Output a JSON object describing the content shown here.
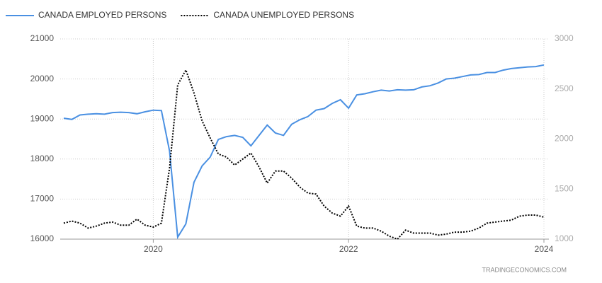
{
  "chart_data": {
    "type": "line",
    "categories": [
      null,
      null,
      null,
      null,
      null,
      null,
      null,
      null,
      null,
      null,
      null,
      "2020",
      null,
      null,
      null,
      null,
      null,
      null,
      null,
      null,
      null,
      null,
      null,
      null,
      null,
      null,
      null,
      null,
      null,
      null,
      null,
      null,
      null,
      null,
      null,
      "2022",
      null,
      null,
      null,
      null,
      null,
      null,
      null,
      null,
      null,
      null,
      null,
      null,
      null,
      null,
      null,
      null,
      null,
      null,
      null,
      null,
      null,
      null,
      null,
      "2024"
    ],
    "series": [
      {
        "name": "CANADA EMPLOYED PERSONS",
        "color": "#4a90e2",
        "axis": "y",
        "dash": false,
        "values": [
          19020,
          18990,
          19100,
          19120,
          19130,
          19120,
          19160,
          19170,
          19160,
          19130,
          19180,
          19220,
          19210,
          18200,
          16050,
          16380,
          17420,
          17830,
          18050,
          18490,
          18560,
          18590,
          18540,
          18330,
          18590,
          18850,
          18650,
          18590,
          18870,
          18980,
          19060,
          19220,
          19260,
          19390,
          19480,
          19270,
          19600,
          19630,
          19680,
          19720,
          19700,
          19730,
          19720,
          19730,
          19800,
          19830,
          19900,
          20000,
          20020,
          20060,
          20100,
          20110,
          20160,
          20160,
          20220,
          20260,
          20280,
          20300,
          20310,
          20350
        ]
      },
      {
        "name": "CANADA UNEMPLOYED PERSONS",
        "color": "#000000",
        "axis": "y2",
        "dash": true,
        "values": [
          1160,
          1180,
          1160,
          1110,
          1130,
          1160,
          1170,
          1140,
          1140,
          1200,
          1140,
          1120,
          1160,
          1710,
          2540,
          2690,
          2460,
          2180,
          2010,
          1850,
          1820,
          1740,
          1800,
          1860,
          1720,
          1560,
          1680,
          1680,
          1610,
          1520,
          1460,
          1450,
          1330,
          1260,
          1230,
          1330,
          1130,
          1110,
          1110,
          1080,
          1030,
          1000,
          1090,
          1060,
          1060,
          1060,
          1040,
          1050,
          1070,
          1070,
          1080,
          1110,
          1160,
          1170,
          1180,
          1190,
          1230,
          1240,
          1240,
          1220
        ]
      }
    ],
    "ylim": [
      16000,
      21000
    ],
    "yticks": [
      16000,
      17000,
      18000,
      19000,
      20000,
      21000
    ],
    "y2lim": [
      1000,
      3000
    ],
    "y2ticks": [
      1000,
      1500,
      2000,
      2500,
      3000
    ],
    "grid": true,
    "watermark": "TRADINGECONOMICS.COM"
  }
}
